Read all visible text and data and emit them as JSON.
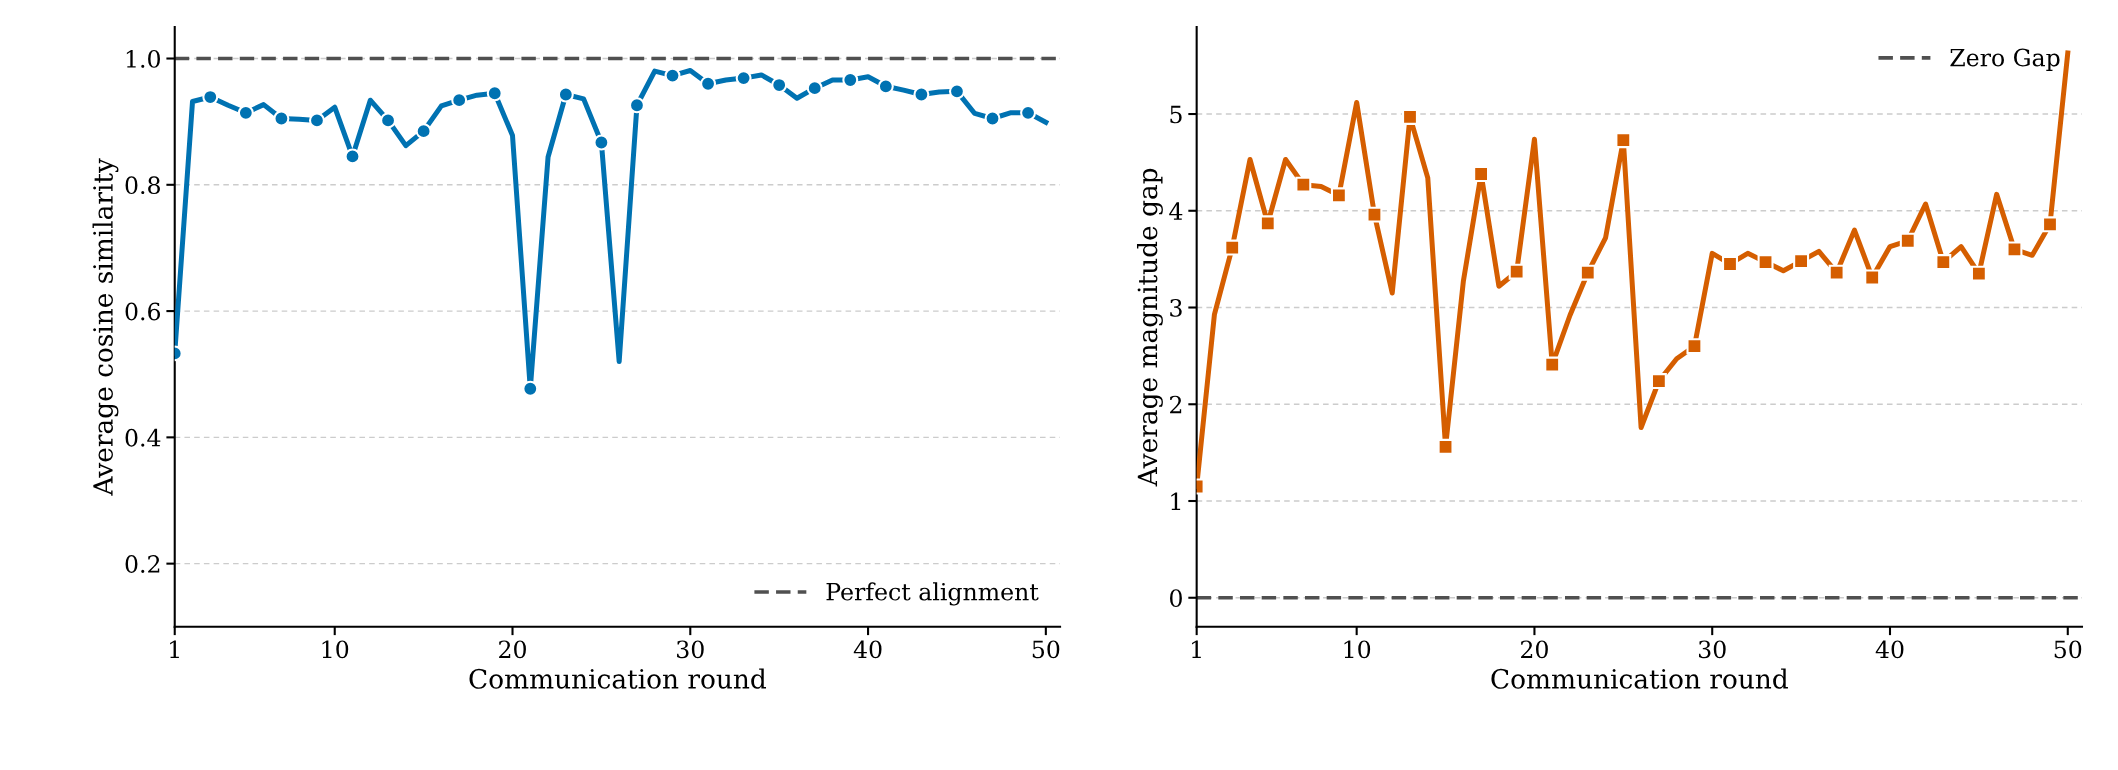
{
  "chart_data": [
    {
      "type": "line",
      "xlabel": "Communication round",
      "ylabel": "Average cosine similarity",
      "x": [
        1,
        2,
        3,
        4,
        5,
        6,
        7,
        8,
        9,
        10,
        11,
        12,
        13,
        14,
        15,
        16,
        17,
        18,
        19,
        20,
        21,
        22,
        23,
        24,
        25,
        26,
        27,
        28,
        29,
        30,
        31,
        32,
        33,
        34,
        35,
        36,
        37,
        38,
        39,
        40,
        41,
        42,
        43,
        44,
        45,
        46,
        47,
        48,
        49,
        50
      ],
      "series": [
        {
          "color": "#0072b2",
          "marker": "circle",
          "values": [
            0.533,
            0.932,
            0.939,
            0.926,
            0.914,
            0.927,
            0.905,
            0.904,
            0.902,
            0.923,
            0.845,
            0.934,
            0.902,
            0.862,
            0.885,
            0.925,
            0.934,
            0.942,
            0.945,
            0.878,
            0.477,
            0.844,
            0.943,
            0.936,
            0.867,
            0.52,
            0.926,
            0.98,
            0.973,
            0.981,
            0.96,
            0.966,
            0.969,
            0.974,
            0.958,
            0.937,
            0.953,
            0.966,
            0.966,
            0.971,
            0.956,
            0.95,
            0.943,
            0.947,
            0.948,
            0.913,
            0.905,
            0.914,
            0.914,
            0.899
          ]
        }
      ],
      "ref_lines": [
        {
          "axis": "y",
          "value": 1.0,
          "label": "Perfect alignment",
          "color": "#505050",
          "line_style": "dashed"
        }
      ],
      "xlim": [
        1,
        50.8
      ],
      "xticks": [
        1,
        10,
        20,
        30,
        40,
        50
      ],
      "ylim": [
        0.1,
        1.05
      ],
      "yticks": [
        0.2,
        0.4,
        0.6,
        0.8,
        {
          "value": 1.0,
          "label": "1.0"
        }
      ],
      "grid": "y",
      "legend": "bottom right"
    },
    {
      "type": "line",
      "xlabel": "Communication round",
      "ylabel": "Average magnitude gap",
      "x": [
        1,
        2,
        3,
        4,
        5,
        6,
        7,
        8,
        9,
        10,
        11,
        12,
        13,
        14,
        15,
        16,
        17,
        18,
        19,
        20,
        21,
        22,
        23,
        24,
        25,
        26,
        27,
        28,
        29,
        30,
        31,
        32,
        33,
        34,
        35,
        36,
        37,
        38,
        39,
        40,
        41,
        42,
        43,
        44,
        45,
        46,
        47,
        48,
        49,
        50
      ],
      "series": [
        {
          "color": "#d55e00",
          "marker": "square",
          "values": [
            1.15,
            2.93,
            3.62,
            4.53,
            3.87,
            4.53,
            4.27,
            4.25,
            4.16,
            5.12,
            3.96,
            3.15,
            4.97,
            4.34,
            1.56,
            3.27,
            4.38,
            3.22,
            3.37,
            4.74,
            2.41,
            2.92,
            3.36,
            3.72,
            4.73,
            1.76,
            2.24,
            2.47,
            2.6,
            3.56,
            3.45,
            3.56,
            3.47,
            3.38,
            3.48,
            3.58,
            3.36,
            3.8,
            3.31,
            3.63,
            3.69,
            4.07,
            3.47,
            3.63,
            3.35,
            4.17,
            3.6,
            3.54,
            3.86,
            5.63
          ]
        }
      ],
      "ref_lines": [
        {
          "axis": "y",
          "value": 0,
          "label": "Zero Gap",
          "color": "#505050",
          "line_style": "dashed"
        }
      ],
      "xlim": [
        1,
        50.8
      ],
      "xticks": [
        1,
        10,
        20,
        30,
        40,
        50
      ],
      "ylim": [
        -0.3,
        5.9
      ],
      "yticks": [
        0,
        1,
        2,
        3,
        4,
        5
      ],
      "grid": "y",
      "legend": "top right"
    }
  ]
}
